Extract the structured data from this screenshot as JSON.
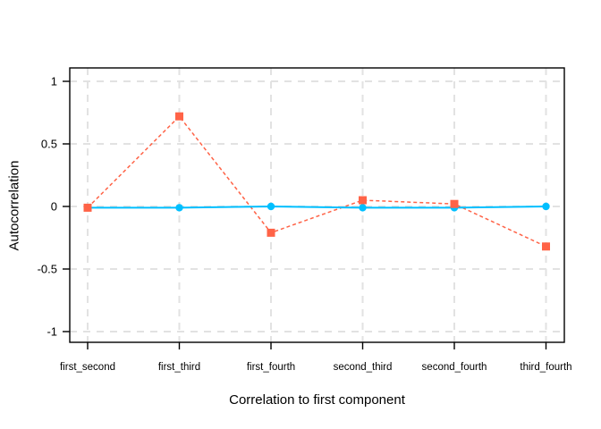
{
  "chart_data": {
    "type": "line",
    "title": "",
    "xlabel": "Correlation to first component",
    "ylabel": "Autocorrelation",
    "categories": [
      "first_second",
      "first_third",
      "first_fourth",
      "second_third",
      "second_fourth",
      "third_fourth"
    ],
    "yticks": [
      1,
      0.5,
      0,
      -0.5,
      -1
    ],
    "ytick_labels": [
      "1",
      "0.5",
      "0",
      "-0.5",
      "-1"
    ],
    "ylim": [
      -1.09,
      1.11
    ],
    "grid": "dashed-both-axes",
    "legend": "none",
    "series": [
      {
        "name": "red-dashed-squares",
        "color": "#FF6347",
        "line_style": "dashed",
        "marker": "square",
        "values": [
          -0.01,
          0.72,
          -0.21,
          0.05,
          0.02,
          -0.32
        ]
      },
      {
        "name": "blue-solid-circles",
        "color": "#00BFFF",
        "line_style": "solid",
        "marker": "circle",
        "values": [
          -0.01,
          -0.01,
          0.0,
          -0.01,
          -0.01,
          0.0
        ]
      }
    ],
    "colors": {
      "grid": "#E2E2E2",
      "axis": "#000000",
      "background": "#FFFFFF"
    }
  }
}
